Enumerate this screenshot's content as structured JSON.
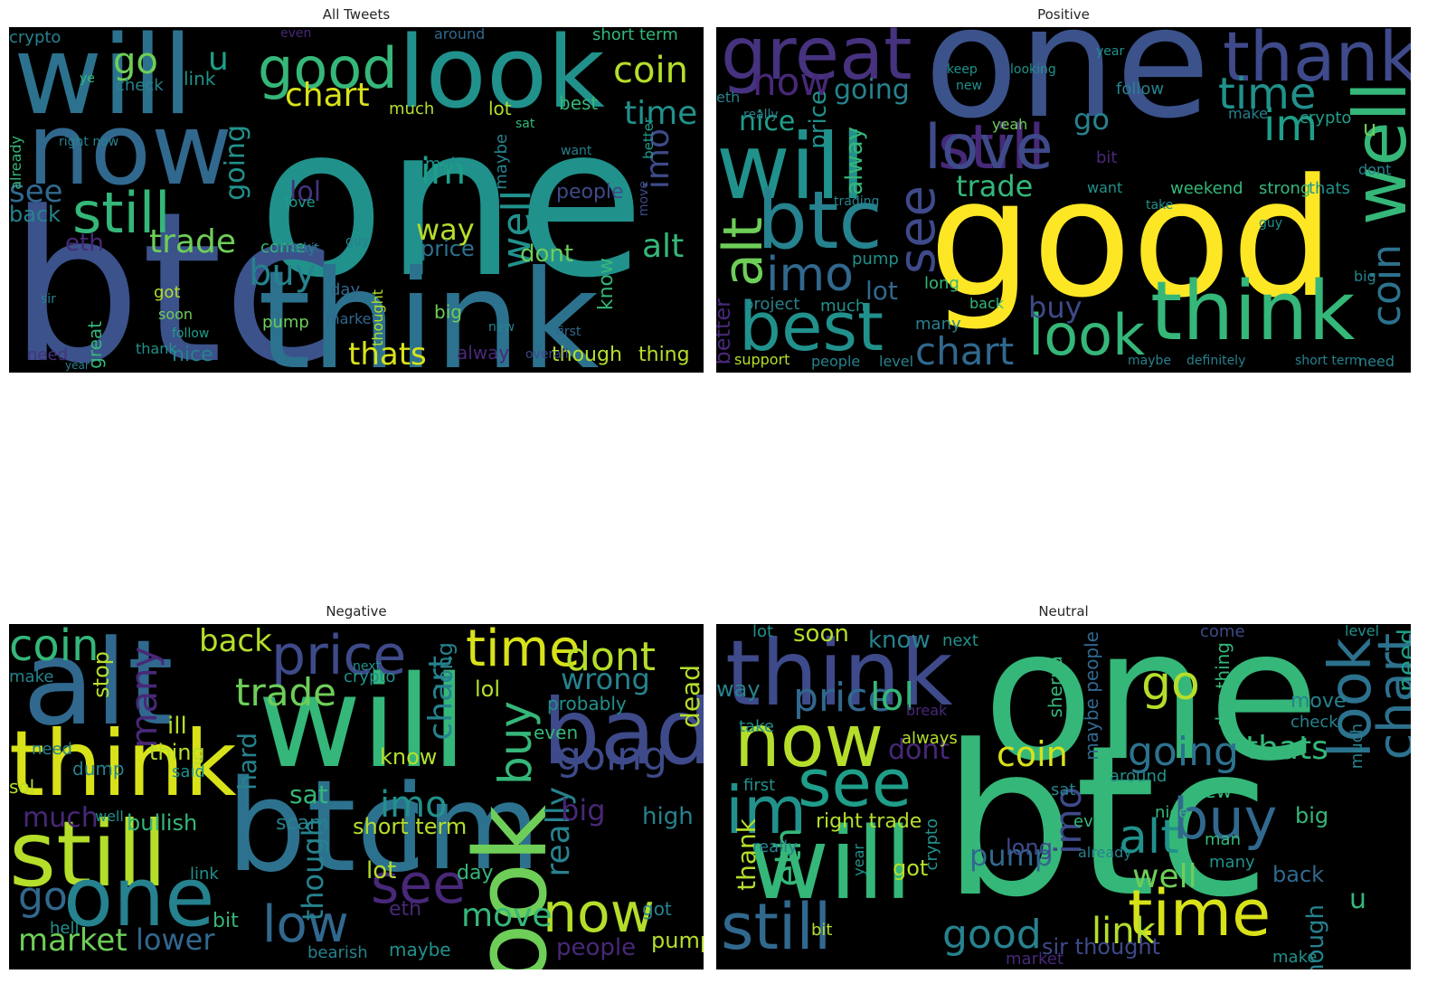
{
  "panels": [
    {
      "title": "All Tweets",
      "words": [
        {
          "t": "one",
          "c": "#21918c"
        },
        {
          "t": "btc",
          "c": "#3b528b"
        },
        {
          "t": "think",
          "c": "#2c728e"
        },
        {
          "t": "will",
          "c": "#2c728e"
        },
        {
          "t": "now",
          "c": "#31688e"
        },
        {
          "t": "look",
          "c": "#21918c"
        },
        {
          "t": "good",
          "c": "#35b779"
        },
        {
          "t": "coin",
          "c": "#b5de2b"
        },
        {
          "t": "still",
          "c": "#35b779"
        },
        {
          "t": "time",
          "c": "#21918c"
        },
        {
          "t": "chart",
          "c": "#d8e219"
        },
        {
          "t": "lol",
          "c": "#46327e"
        },
        {
          "t": "im",
          "c": "#1f9e89"
        },
        {
          "t": "trade",
          "c": "#6ece58"
        },
        {
          "t": "buy",
          "c": "#26828e"
        },
        {
          "t": "well",
          "c": "#21918c"
        },
        {
          "t": "imo",
          "c": "#3e4a89"
        },
        {
          "t": "alt",
          "c": "#35b779"
        },
        {
          "t": "way",
          "c": "#b5de2b"
        },
        {
          "t": "see",
          "c": "#31688e"
        },
        {
          "t": "go",
          "c": "#6ece58"
        },
        {
          "t": "u",
          "c": "#1f9e89"
        },
        {
          "t": "thats",
          "c": "#d8e219"
        },
        {
          "t": "eth",
          "c": "#482878"
        },
        {
          "t": "going",
          "c": "#21918c"
        },
        {
          "t": "people",
          "c": "#3e4a89"
        },
        {
          "t": "dont",
          "c": "#6ece58"
        },
        {
          "t": "price",
          "c": "#2c728e"
        },
        {
          "t": "nice",
          "c": "#26828e"
        },
        {
          "t": "though",
          "c": "#b5de2b"
        },
        {
          "t": "thing",
          "c": "#b5de2b"
        },
        {
          "t": "alway",
          "c": "#482878"
        },
        {
          "t": "crypto",
          "c": "#26828e"
        },
        {
          "t": "link",
          "c": "#21918c"
        },
        {
          "t": "lot",
          "c": "#b5de2b"
        },
        {
          "t": "best",
          "c": "#35b779"
        },
        {
          "t": "check",
          "c": "#26828e"
        },
        {
          "t": "know",
          "c": "#35b779"
        },
        {
          "t": "back",
          "c": "#26828e"
        },
        {
          "t": "got",
          "c": "#b5de2b"
        },
        {
          "t": "pump",
          "c": "#6ece58"
        },
        {
          "t": "great",
          "c": "#35b779"
        },
        {
          "t": "need",
          "c": "#46327e"
        },
        {
          "t": "day",
          "c": "#31688e"
        },
        {
          "t": "big",
          "c": "#6ece58"
        },
        {
          "t": "love",
          "c": "#1f9e89"
        },
        {
          "t": "make",
          "c": "#21918c"
        },
        {
          "t": "much",
          "c": "#b5de2b"
        },
        {
          "t": "around",
          "c": "#31688e"
        },
        {
          "t": "short term",
          "c": "#35b779"
        },
        {
          "t": "maybe",
          "c": "#26828e"
        },
        {
          "t": "thought",
          "c": "#b5de2b"
        },
        {
          "t": "market",
          "c": "#31688e"
        },
        {
          "t": "thank",
          "c": "#21918c"
        },
        {
          "t": "new",
          "c": "#26828e"
        },
        {
          "t": "soon",
          "c": "#6ece58"
        },
        {
          "t": "come",
          "c": "#35b779"
        },
        {
          "t": "many",
          "c": "#26828e"
        },
        {
          "t": "better",
          "c": "#1f9e89"
        },
        {
          "t": "move",
          "c": "#3e4a89"
        },
        {
          "t": "overall",
          "c": "#3e4a89"
        },
        {
          "t": "even",
          "c": "#482878"
        },
        {
          "t": "right now",
          "c": "#26828e"
        },
        {
          "t": "ye",
          "c": "#35b779"
        },
        {
          "t": "bit",
          "c": "#31688e"
        },
        {
          "t": "sir",
          "c": "#26828e"
        },
        {
          "t": "year",
          "c": "#26828e"
        },
        {
          "t": "first",
          "c": "#31688e"
        },
        {
          "t": "want",
          "c": "#26828e"
        },
        {
          "t": "follow",
          "c": "#1f9e89"
        },
        {
          "t": "guy",
          "c": "#26828e"
        },
        {
          "t": "sat",
          "c": "#35b779"
        },
        {
          "t": "already",
          "c": "#35b779"
        },
        {
          "t": "trading",
          "c": "#21918c"
        }
      ]
    },
    {
      "title": "Positive",
      "words": [
        {
          "t": "good",
          "c": "#fde725"
        },
        {
          "t": "one",
          "c": "#3b528b"
        },
        {
          "t": "think",
          "c": "#35b779"
        },
        {
          "t": "great",
          "c": "#46327e"
        },
        {
          "t": "thank",
          "c": "#3e4a89"
        },
        {
          "t": "will",
          "c": "#21918c"
        },
        {
          "t": "btc",
          "c": "#26828e"
        },
        {
          "t": "still",
          "c": "#482878"
        },
        {
          "t": "love",
          "c": "#3e4a89"
        },
        {
          "t": "best",
          "c": "#21918c"
        },
        {
          "t": "well",
          "c": "#35b779"
        },
        {
          "t": "look",
          "c": "#35b779"
        },
        {
          "t": "chart",
          "c": "#31688e"
        },
        {
          "t": "imo",
          "c": "#31688e"
        },
        {
          "t": "alt",
          "c": "#6ece58"
        },
        {
          "t": "see",
          "c": "#3e4a89"
        },
        {
          "t": "time",
          "c": "#21918c"
        },
        {
          "t": "im",
          "c": "#1f9e89"
        },
        {
          "t": "coin",
          "c": "#2c728e"
        },
        {
          "t": "now",
          "c": "#482878"
        },
        {
          "t": "going",
          "c": "#26828e"
        },
        {
          "t": "nice",
          "c": "#1f9e89"
        },
        {
          "t": "trade",
          "c": "#35b779"
        },
        {
          "t": "buy",
          "c": "#3e4a89"
        },
        {
          "t": "lot",
          "c": "#31688e"
        },
        {
          "t": "go",
          "c": "#26828e"
        },
        {
          "t": "u",
          "c": "#6ece58"
        },
        {
          "t": "price",
          "c": "#21918c"
        },
        {
          "t": "alway",
          "c": "#35b779"
        },
        {
          "t": "better",
          "c": "#482878"
        },
        {
          "t": "crypto",
          "c": "#1f9e89"
        },
        {
          "t": "follow",
          "c": "#26828e"
        },
        {
          "t": "weekend",
          "c": "#35b779"
        },
        {
          "t": "strong",
          "c": "#35b779"
        },
        {
          "t": "thats",
          "c": "#21918c"
        },
        {
          "t": "project",
          "c": "#26828e"
        },
        {
          "t": "much",
          "c": "#21918c"
        },
        {
          "t": "support",
          "c": "#b5de2b"
        },
        {
          "t": "people",
          "c": "#26828e"
        },
        {
          "t": "level",
          "c": "#26828e"
        },
        {
          "t": "pump",
          "c": "#21918c"
        },
        {
          "t": "many",
          "c": "#26828e"
        },
        {
          "t": "long",
          "c": "#35b779"
        },
        {
          "t": "back",
          "c": "#35b779"
        },
        {
          "t": "bit",
          "c": "#482878"
        },
        {
          "t": "eth",
          "c": "#26828e"
        },
        {
          "t": "really",
          "c": "#26828e"
        },
        {
          "t": "trading",
          "c": "#26828e"
        },
        {
          "t": "yeah",
          "c": "#6ece58"
        },
        {
          "t": "make",
          "c": "#26828e"
        },
        {
          "t": "dont",
          "c": "#26828e"
        },
        {
          "t": "big",
          "c": "#26828e"
        },
        {
          "t": "short term",
          "c": "#26828e"
        },
        {
          "t": "need",
          "c": "#26828e"
        },
        {
          "t": "definitely",
          "c": "#26828e"
        },
        {
          "t": "maybe",
          "c": "#26828e"
        },
        {
          "t": "guy",
          "c": "#21918c"
        },
        {
          "t": "want",
          "c": "#21918c"
        },
        {
          "t": "take",
          "c": "#21918c"
        },
        {
          "t": "keep",
          "c": "#21918c"
        },
        {
          "t": "new",
          "c": "#21918c"
        },
        {
          "t": "looking",
          "c": "#21918c"
        },
        {
          "t": "year",
          "c": "#21918c"
        }
      ]
    },
    {
      "title": "Negative",
      "words": [
        {
          "t": "will",
          "c": "#35b779"
        },
        {
          "t": "btc",
          "c": "#2c728e"
        },
        {
          "t": "alt",
          "c": "#31688e"
        },
        {
          "t": "im",
          "c": "#2c728e"
        },
        {
          "t": "think",
          "c": "#d8e219"
        },
        {
          "t": "still",
          "c": "#b5de2b"
        },
        {
          "t": "bad",
          "c": "#3e4a89"
        },
        {
          "t": "price",
          "c": "#3e4a89"
        },
        {
          "t": "one",
          "c": "#26828e"
        },
        {
          "t": "time",
          "c": "#d8e219"
        },
        {
          "t": "dont",
          "c": "#b5de2b"
        },
        {
          "t": "look",
          "c": "#6ece58"
        },
        {
          "t": "now",
          "c": "#b5de2b"
        },
        {
          "t": "buy",
          "c": "#35b779"
        },
        {
          "t": "coin",
          "c": "#35b779"
        },
        {
          "t": "trade",
          "c": "#6ece58"
        },
        {
          "t": "going",
          "c": "#3e4a89"
        },
        {
          "t": "wrong",
          "c": "#26828e"
        },
        {
          "t": "see",
          "c": "#482878"
        },
        {
          "t": "low",
          "c": "#31688e"
        },
        {
          "t": "many",
          "c": "#482878"
        },
        {
          "t": "back",
          "c": "#b5de2b"
        },
        {
          "t": "market",
          "c": "#6ece58"
        },
        {
          "t": "lower",
          "c": "#31688e"
        },
        {
          "t": "go",
          "c": "#31688e"
        },
        {
          "t": "move",
          "c": "#35b779"
        },
        {
          "t": "much",
          "c": "#482878"
        },
        {
          "t": "imo",
          "c": "#21918c"
        },
        {
          "t": "chart",
          "c": "#26828e"
        },
        {
          "t": "dead",
          "c": "#b5de2b"
        },
        {
          "t": "really",
          "c": "#26828e"
        },
        {
          "t": "big",
          "c": "#482878"
        },
        {
          "t": "sat",
          "c": "#35b779"
        },
        {
          "t": "high",
          "c": "#26828e"
        },
        {
          "t": "lot",
          "c": "#b5de2b"
        },
        {
          "t": "day",
          "c": "#35b779"
        },
        {
          "t": "people",
          "c": "#482878"
        },
        {
          "t": "pump",
          "c": "#b5de2b"
        },
        {
          "t": "bullish",
          "c": "#35b779"
        },
        {
          "t": "scam",
          "c": "#26828e"
        },
        {
          "t": "thing",
          "c": "#b5de2b"
        },
        {
          "t": "hard",
          "c": "#26828e"
        },
        {
          "t": "know",
          "c": "#b5de2b"
        },
        {
          "t": "lol",
          "c": "#b5de2b"
        },
        {
          "t": "bit",
          "c": "#35b779"
        },
        {
          "t": "long",
          "c": "#26828e"
        },
        {
          "t": "even",
          "c": "#35b779"
        },
        {
          "t": "probably",
          "c": "#21918c"
        },
        {
          "t": "stop",
          "c": "#b5de2b"
        },
        {
          "t": "short term",
          "c": "#b5de2b"
        },
        {
          "t": "though",
          "c": "#26828e"
        },
        {
          "t": "maybe",
          "c": "#21918c"
        },
        {
          "t": "bearish",
          "c": "#26828e"
        },
        {
          "t": "got",
          "c": "#26828e"
        },
        {
          "t": "crypto",
          "c": "#21918c"
        },
        {
          "t": "ill",
          "c": "#b5de2b"
        },
        {
          "t": "eth",
          "c": "#482878"
        },
        {
          "t": "dump",
          "c": "#26828e"
        },
        {
          "t": "need",
          "c": "#26828e"
        },
        {
          "t": "sol",
          "c": "#b5de2b"
        },
        {
          "t": "make",
          "c": "#26828e"
        },
        {
          "t": "well",
          "c": "#21918c"
        },
        {
          "t": "hell",
          "c": "#21918c"
        },
        {
          "t": "link",
          "c": "#21918c"
        },
        {
          "t": "said",
          "c": "#21918c"
        },
        {
          "t": "next",
          "c": "#21918c"
        }
      ]
    },
    {
      "title": "Neutral",
      "words": [
        {
          "t": "one",
          "c": "#35b779"
        },
        {
          "t": "btc",
          "c": "#35b779"
        },
        {
          "t": "will",
          "c": "#35b779"
        },
        {
          "t": "think",
          "c": "#3e4a89"
        },
        {
          "t": "now",
          "c": "#b5de2b"
        },
        {
          "t": "look",
          "c": "#2c728e"
        },
        {
          "t": "still",
          "c": "#31688e"
        },
        {
          "t": "see",
          "c": "#1f9e89"
        },
        {
          "t": "im",
          "c": "#21918c"
        },
        {
          "t": "time",
          "c": "#d8e219"
        },
        {
          "t": "chart",
          "c": "#2c728e"
        },
        {
          "t": "buy",
          "c": "#31688e"
        },
        {
          "t": "price",
          "c": "#31688e"
        },
        {
          "t": "lol",
          "c": "#35b779"
        },
        {
          "t": "good",
          "c": "#26828e"
        },
        {
          "t": "going",
          "c": "#2c728e"
        },
        {
          "t": "thats",
          "c": "#35b779"
        },
        {
          "t": "coin",
          "c": "#d8e219"
        },
        {
          "t": "alt",
          "c": "#21918c"
        },
        {
          "t": "well",
          "c": "#6ece58"
        },
        {
          "t": "imo",
          "c": "#3e4a89"
        },
        {
          "t": "go",
          "c": "#b5de2b"
        },
        {
          "t": "way",
          "c": "#26828e"
        },
        {
          "t": "link",
          "c": "#b5de2b"
        },
        {
          "t": "dont",
          "c": "#482878"
        },
        {
          "t": "need",
          "c": "#1f9e89"
        },
        {
          "t": "eth",
          "c": "#35b779"
        },
        {
          "t": "pump",
          "c": "#31688e"
        },
        {
          "t": "u",
          "c": "#35b779"
        },
        {
          "t": "back",
          "c": "#31688e"
        },
        {
          "t": "long",
          "c": "#3e4a89"
        },
        {
          "t": "thank",
          "c": "#b5de2b"
        },
        {
          "t": "right trade",
          "c": "#b5de2b"
        },
        {
          "t": "sir thought",
          "c": "#3e4a89"
        },
        {
          "t": "know",
          "c": "#26828e"
        },
        {
          "t": "soon",
          "c": "#b5de2b"
        },
        {
          "t": "move",
          "c": "#26828e"
        },
        {
          "t": "check",
          "c": "#26828e"
        },
        {
          "t": "maybe people",
          "c": "#31688e"
        },
        {
          "t": "day thing",
          "c": "#35b779"
        },
        {
          "t": "sherpa",
          "c": "#35b779"
        },
        {
          "t": "next",
          "c": "#21918c"
        },
        {
          "t": "market",
          "c": "#482878"
        },
        {
          "t": "got",
          "c": "#b5de2b"
        },
        {
          "t": "make",
          "c": "#21918c"
        },
        {
          "t": "big",
          "c": "#35b779"
        },
        {
          "t": "new",
          "c": "#35b779"
        },
        {
          "t": "nice",
          "c": "#35b779"
        },
        {
          "t": "sat",
          "c": "#26828e"
        },
        {
          "t": "even",
          "c": "#35b779"
        },
        {
          "t": "man",
          "c": "#35b779"
        },
        {
          "t": "many",
          "c": "#21918c"
        },
        {
          "t": "though",
          "c": "#26828e"
        },
        {
          "t": "bit",
          "c": "#b5de2b"
        },
        {
          "t": "around",
          "c": "#21918c"
        },
        {
          "t": "always",
          "c": "#b5de2b"
        },
        {
          "t": "really",
          "c": "#26828e"
        },
        {
          "t": "first",
          "c": "#21918c"
        },
        {
          "t": "crypto",
          "c": "#21918c"
        },
        {
          "t": "lot",
          "c": "#21918c"
        },
        {
          "t": "come",
          "c": "#3e4a89"
        },
        {
          "t": "level",
          "c": "#21918c"
        },
        {
          "t": "take",
          "c": "#21918c"
        },
        {
          "t": "break",
          "c": "#482878"
        },
        {
          "t": "already",
          "c": "#26828e"
        },
        {
          "t": "year",
          "c": "#21918c"
        },
        {
          "t": "much",
          "c": "#26828e"
        },
        {
          "t": "bottom",
          "c": "#26828e"
        },
        {
          "t": "looking probably",
          "c": "#26828e"
        }
      ]
    }
  ]
}
